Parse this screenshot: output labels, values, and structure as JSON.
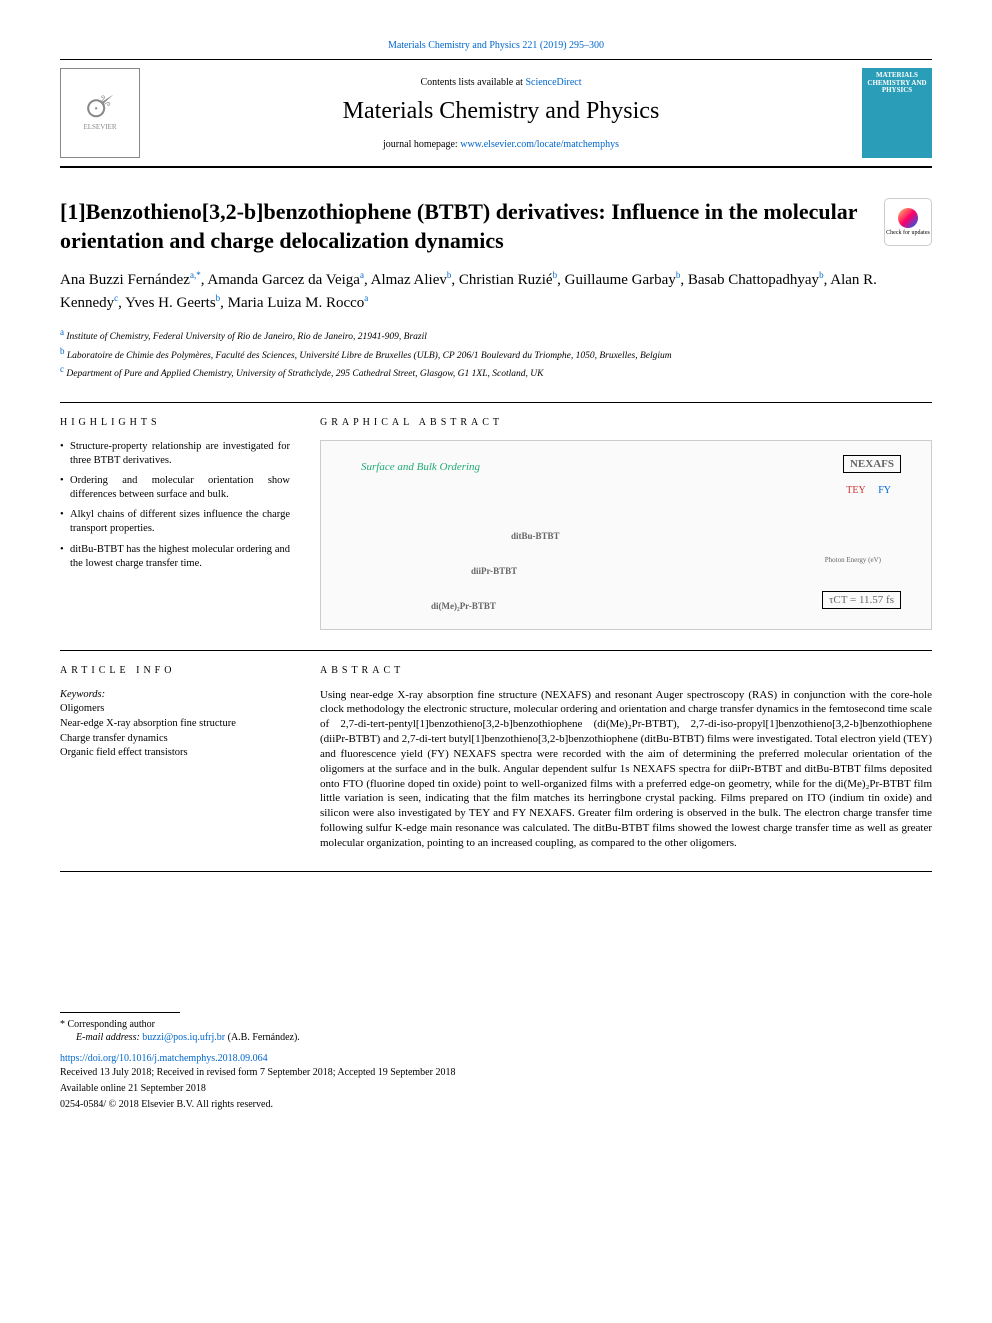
{
  "header": {
    "citation": "Materials Chemistry and Physics 221 (2019) 295–300",
    "contents_prefix": "Contents lists available at ",
    "contents_link": "ScienceDirect",
    "journal_name": "Materials Chemistry and Physics",
    "homepage_prefix": "journal homepage: ",
    "homepage_link": "www.elsevier.com/locate/matchemphys",
    "elsevier_label": "ELSEVIER",
    "cover_title": "MATERIALS CHEMISTRY AND PHYSICS",
    "check_updates": "Check for updates"
  },
  "title": "[1]Benzothieno[3,2-b]benzothiophene (BTBT) derivatives: Influence in the molecular orientation and charge delocalization dynamics",
  "authors_html": "Ana Buzzi Fernández<sup>a,*</sup>, Amanda Garcez da Veiga<sup>a</sup>, Almaz Aliev<sup>b</sup>, Christian Ruzié<sup>b</sup>, Guillaume Garbay<sup>b</sup>, Basab Chattopadhyay<sup>b</sup>, Alan R. Kennedy<sup>c</sup>, Yves H. Geerts<sup>b</sup>, Maria Luiza M. Rocco<sup>a</sup>",
  "affiliations": [
    {
      "sup": "a",
      "text": "Institute of Chemistry, Federal University of Rio de Janeiro, Rio de Janeiro, 21941-909, Brazil"
    },
    {
      "sup": "b",
      "text": "Laboratoire de Chimie des Polymères, Faculté des Sciences, Université Libre de Bruxelles (ULB), CP 206/1 Boulevard du Triomphe, 1050, Bruxelles, Belgium"
    },
    {
      "sup": "c",
      "text": "Department of Pure and Applied Chemistry, University of Strathclyde, 295 Cathedral Street, Glasgow, G1 1XL, Scotland, UK"
    }
  ],
  "sections": {
    "highlights_label": "HIGHLIGHTS",
    "highlights": [
      "Structure-property relationship are investigated for three BTBT derivatives.",
      "Ordering and molecular orientation show differences between surface and bulk.",
      "Alkyl chains of different sizes influence the charge transport properties.",
      "ditBu-BTBT has the highest molecular ordering and the lowest charge transfer time."
    ],
    "graphical_label": "GRAPHICAL ABSTRACT",
    "ga": {
      "arrow_text": "Surface and Bulk Ordering",
      "mol1": "ditBu-BTBT",
      "mol2": "diiPr-BTBT",
      "mol3": "di(Me)₂Pr-BTBT",
      "nexafs": "NEXAFS",
      "tey": "TEY",
      "fy": "FY",
      "xaxis": "Photon Energy (eV)",
      "tau": "τCT = 11.57 fs"
    },
    "info_label": "ARTICLE INFO",
    "keywords_label": "Keywords:",
    "keywords": [
      "Oligomers",
      "Near-edge X-ray absorption fine structure",
      "Charge transfer dynamics",
      "Organic field effect transistors"
    ],
    "abstract_label": "ABSTRACT",
    "abstract": "Using near-edge X-ray absorption fine structure (NEXAFS) and resonant Auger spectroscopy (RAS) in conjunction with the core-hole clock methodology the electronic structure, molecular ordering and orientation and charge transfer dynamics in the femtosecond time scale of 2,7-di-tert-pentyl[1]benzothieno[3,2-b]benzothiophene (di(Me)₂Pr-BTBT), 2,7-di-iso-propyl[1]benzothieno[3,2-b]benzothiophene (diiPr-BTBT) and 2,7-di-tert butyl[1]benzothieno[3,2-b]benzothiophene (ditBu-BTBT) films were investigated. Total electron yield (TEY) and fluorescence yield (FY) NEXAFS spectra were recorded with the aim of determining the preferred molecular orientation of the oligomers at the surface and in the bulk. Angular dependent sulfur 1s NEXAFS spectra for diiPr-BTBT and ditBu-BTBT films deposited onto FTO (fluorine doped tin oxide) point to well-organized films with a preferred edge-on geometry, while for the di(Me)₂Pr-BTBT film little variation is seen, indicating that the film matches its herringbone crystal packing. Films prepared on ITO (indium tin oxide) and silicon were also investigated by TEY and FY NEXAFS. Greater film ordering is observed in the bulk. The electron charge transfer time following sulfur K-edge main resonance was calculated. The ditBu-BTBT films showed the lowest charge transfer time as well as greater molecular organization, pointing to an increased coupling, as compared to the other oligomers."
  },
  "footer": {
    "corresp_label": "* Corresponding author",
    "email_label": "E-mail address: ",
    "email": "buzzi@pos.iq.ufrj.br",
    "email_name": " (A.B. Fernández).",
    "doi": "https://doi.org/10.1016/j.matchemphys.2018.09.064",
    "received": "Received 13 July 2018; Received in revised form 7 September 2018; Accepted 19 September 2018",
    "online": "Available online 21 September 2018",
    "copyright": "0254-0584/ © 2018 Elsevier B.V. All rights reserved."
  },
  "colors": {
    "link": "#0066cc",
    "cover_bg": "#2a9db8"
  }
}
